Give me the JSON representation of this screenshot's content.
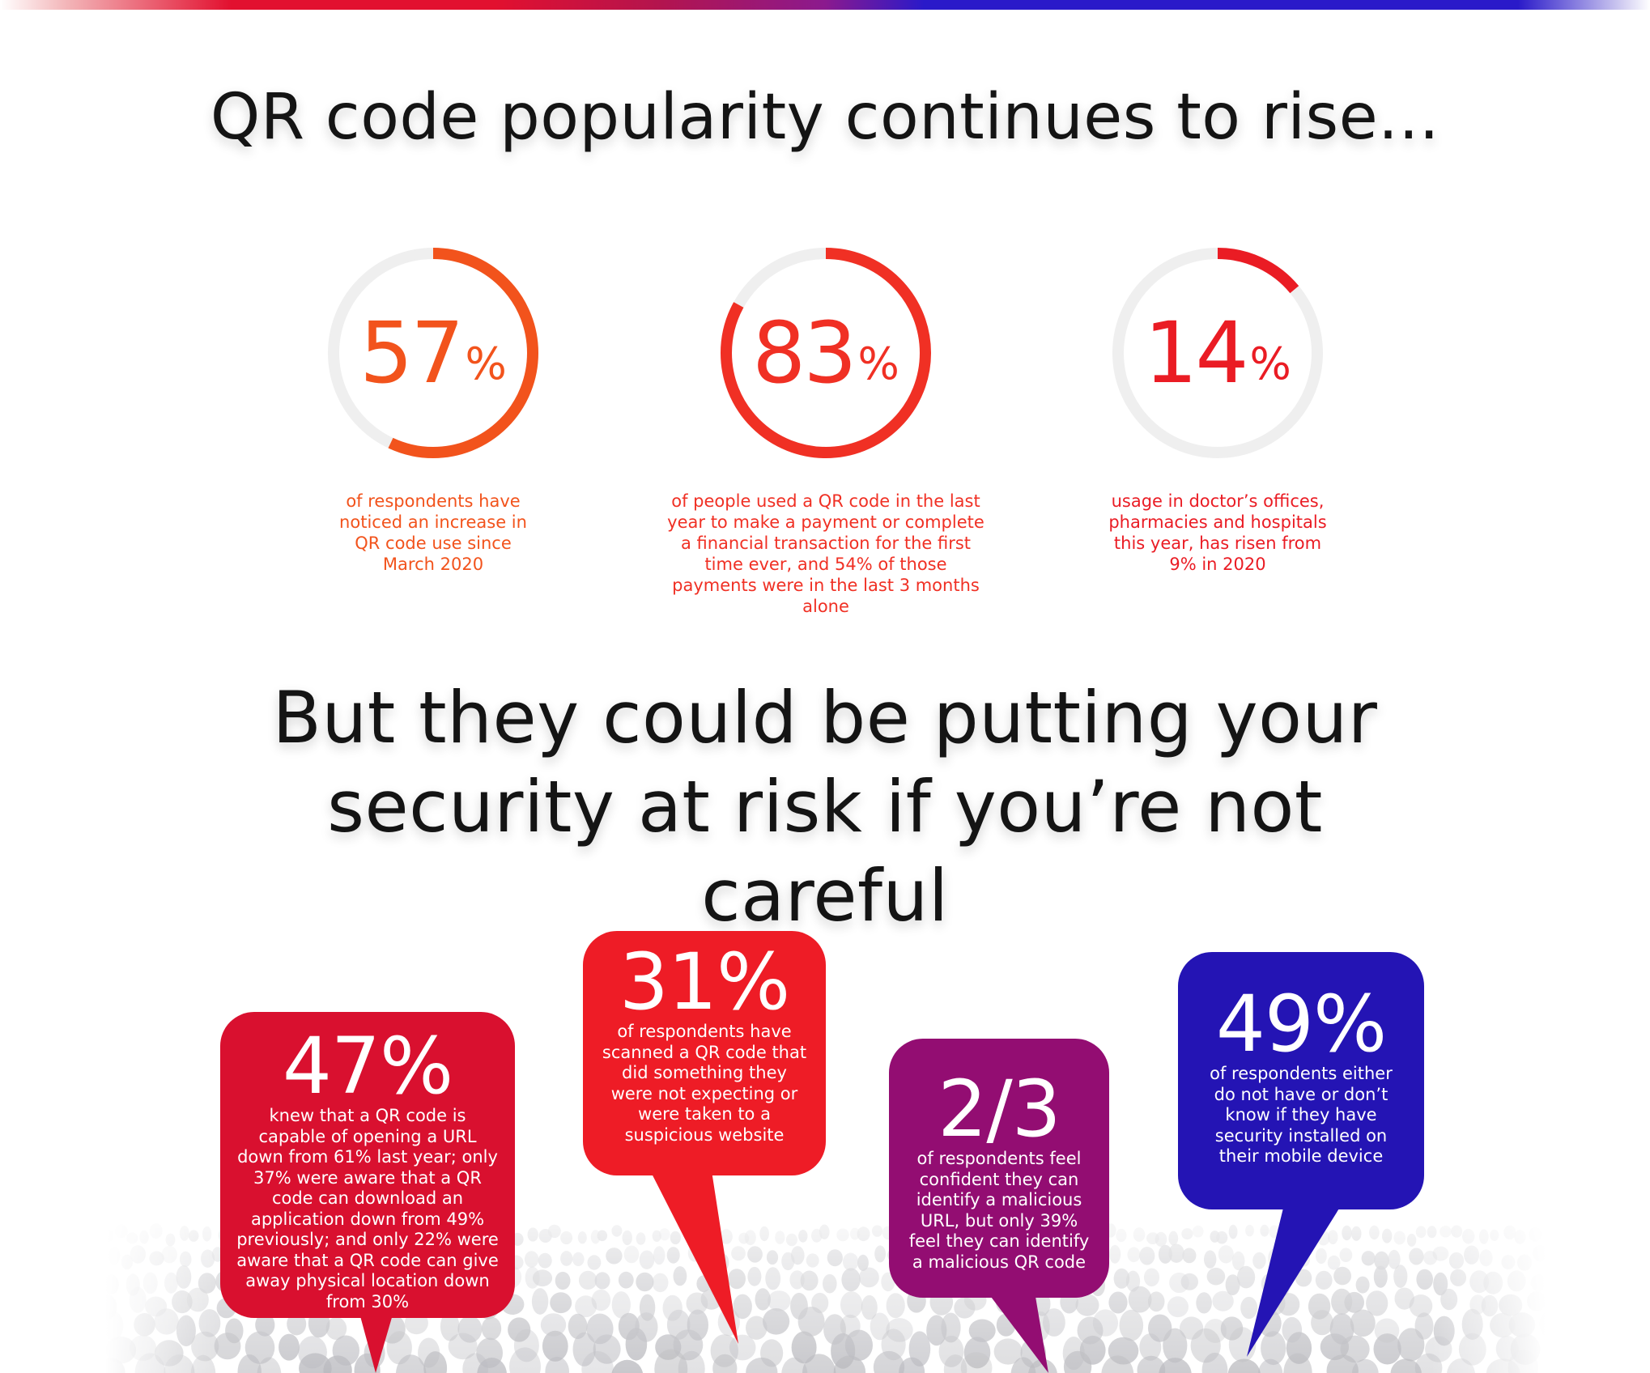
{
  "heading_top": "QR code popularity continues to rise...",
  "heading_bottom": "But they could be putting your security at risk if you’re not careful",
  "rings": [
    {
      "value": "57",
      "percent_sign": "%",
      "fraction": 0.57,
      "color": "#f2531c",
      "description": "of respondents have noticed an increase in QR code use since March 2020"
    },
    {
      "value": "83",
      "percent_sign": "%",
      "fraction": 0.83,
      "color": "#f03024",
      "description": "of people used a QR code in the last year to make a payment or complete a financial transaction for the first time ever, and 54% of those payments were in the last 3 months alone"
    },
    {
      "value": "14",
      "percent_sign": "%",
      "fraction": 0.14,
      "color": "#ea1c24",
      "description": "usage in doctor’s offices, pharmacies and hospitals this year, has risen from 9% in 2020"
    }
  ],
  "bubbles": [
    {
      "value": "47%",
      "color": "#d9102f",
      "text": "knew that a QR code is capable of opening a URL down from 61% last year; only 37% were aware that a QR code can download an application down from 49% previously; and only 22% were aware that a QR code can give away physical location down from 30%"
    },
    {
      "value": "31%",
      "color": "#ee1c26",
      "text": "of respondents have scanned a QR code that did something they were not expecting or were taken to a suspicious website"
    },
    {
      "value": "2/3",
      "color": "#930d72",
      "text": "of respondents feel confident they can identify a malicious URL, but only 39% feel they can identify a malicious QR code"
    },
    {
      "value": "49%",
      "color": "#2414b4",
      "text": "of respondents either do not have or don’t know if they have security installed on their mobile device"
    }
  ],
  "ring_track_color": "#efefef"
}
